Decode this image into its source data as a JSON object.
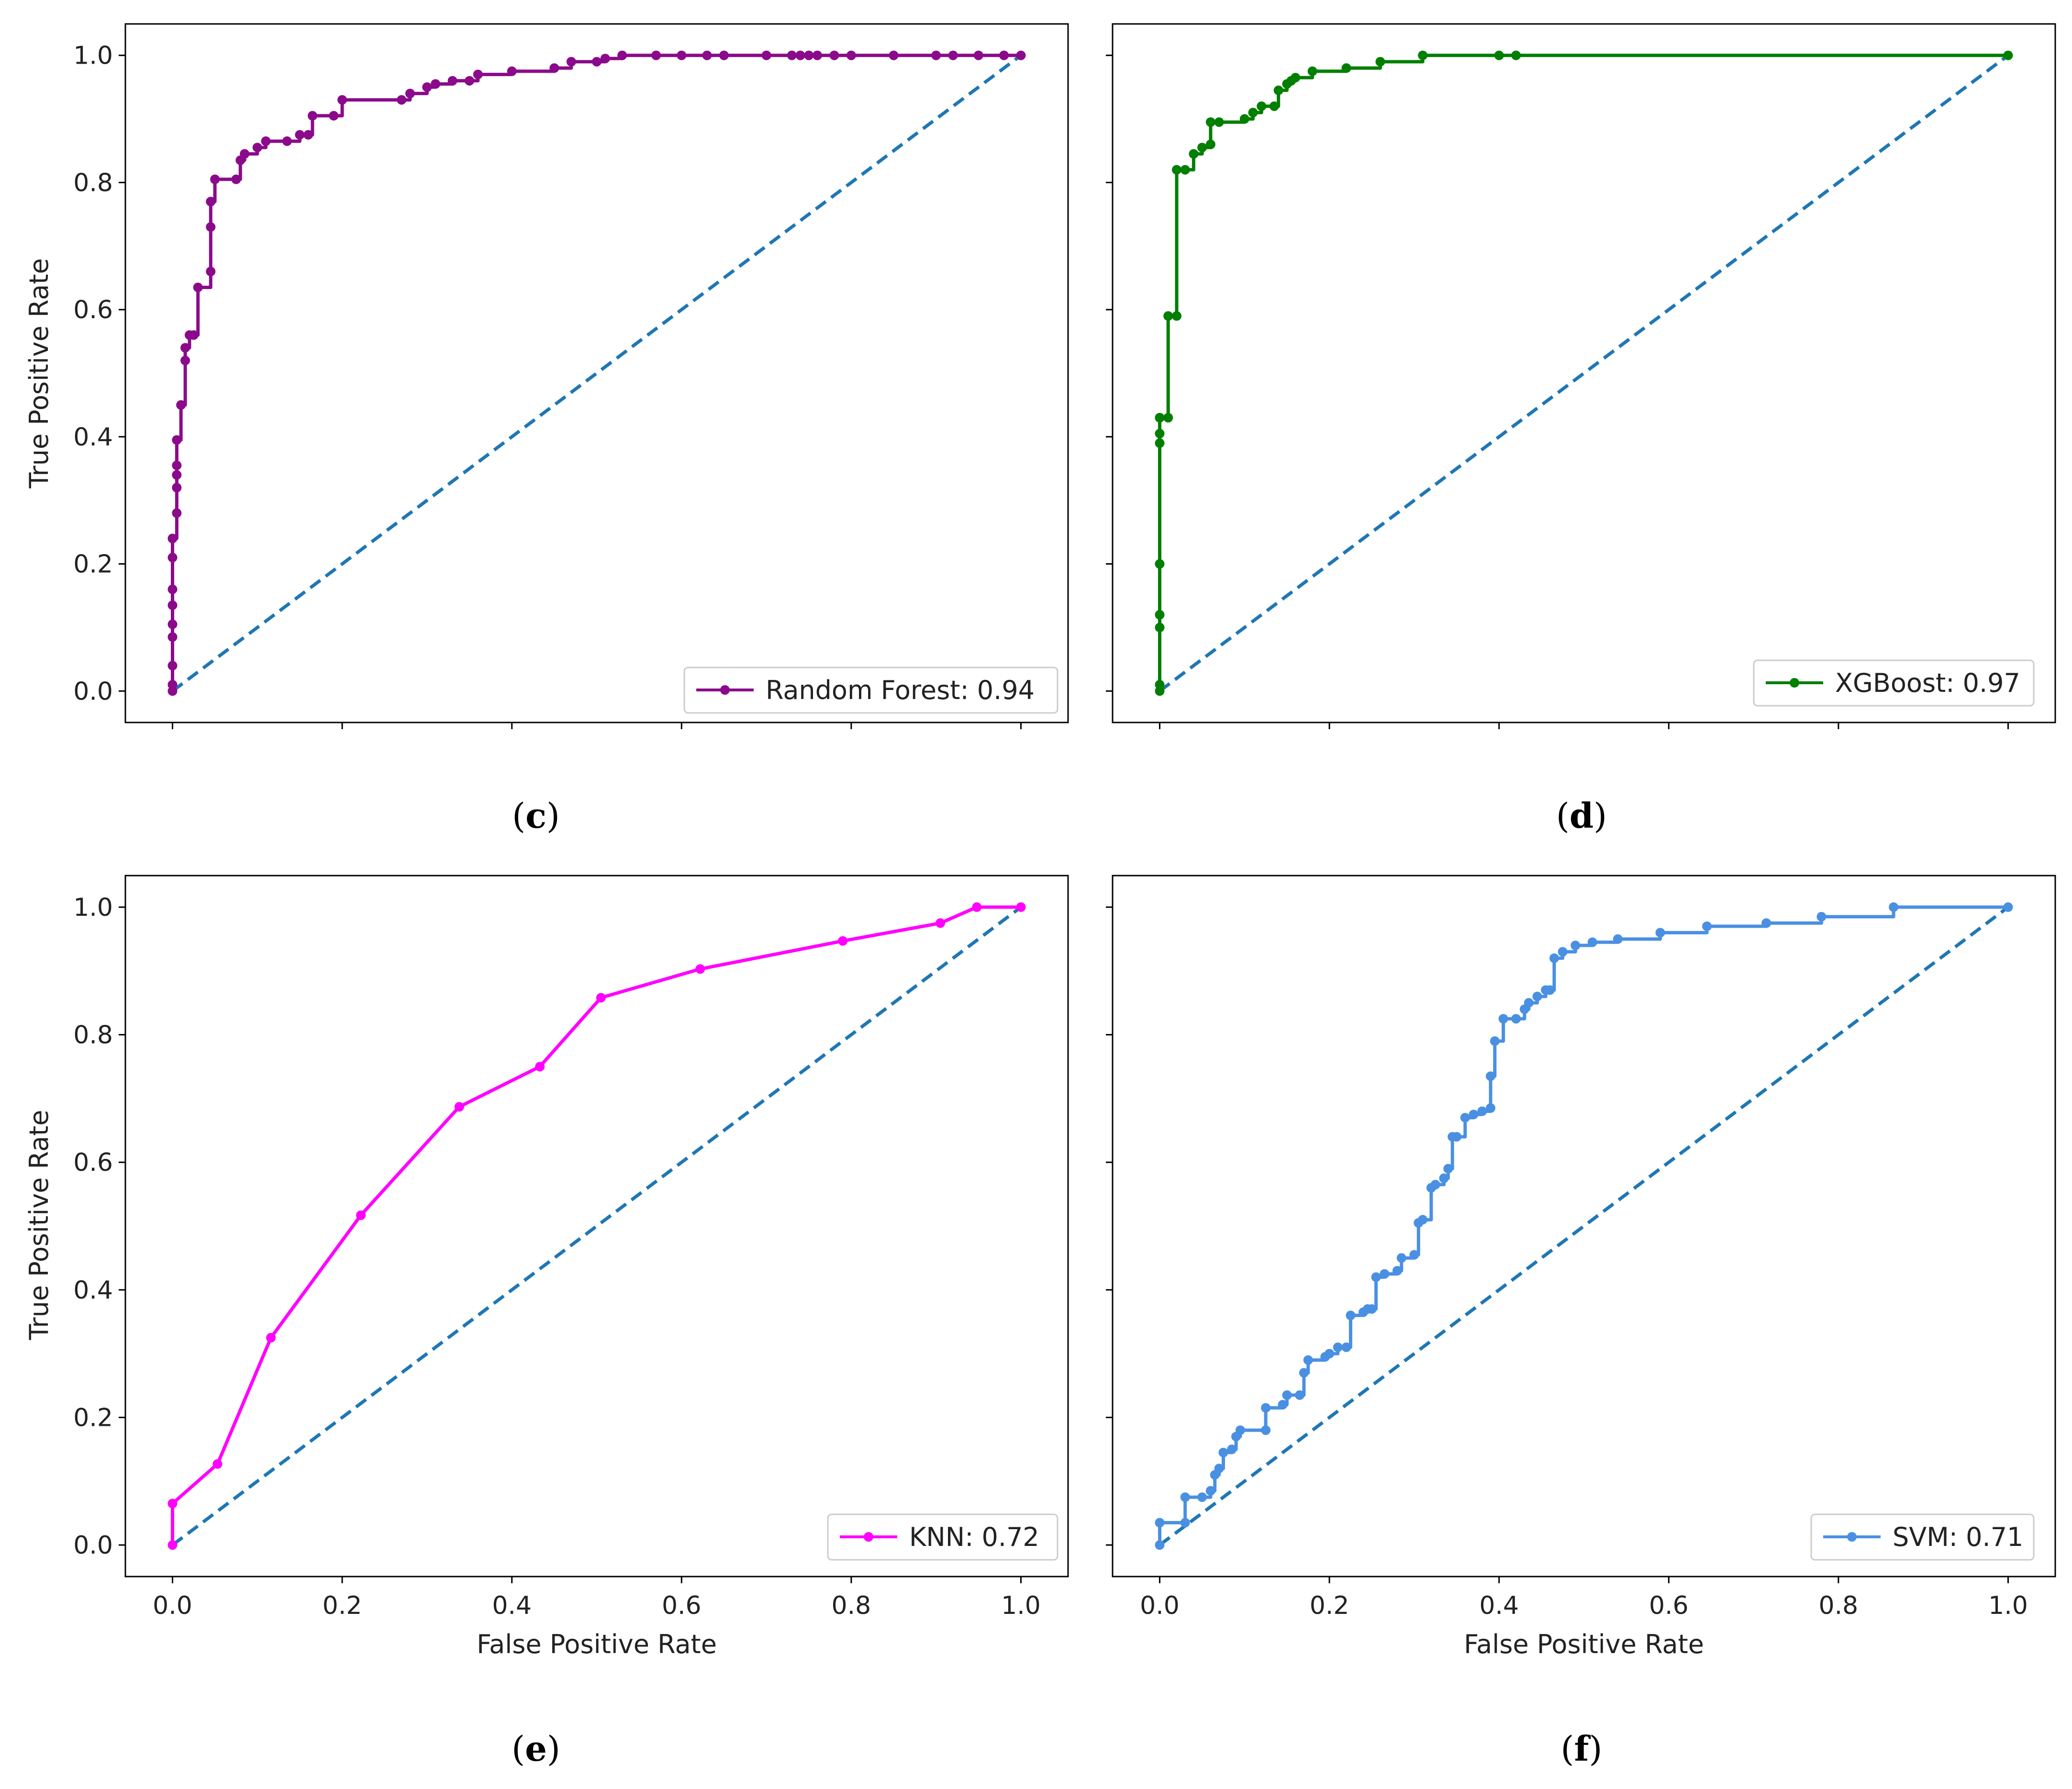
{
  "chart_data": [
    {
      "panel": "c",
      "type": "line",
      "caption_letter": "c",
      "caption_open": "(",
      "caption_close": ")",
      "xlabel": "",
      "ylabel": "True Positive Rate",
      "xlim": [
        0,
        1
      ],
      "ylim": [
        0,
        1
      ],
      "x_ticks": [
        "",
        "",
        "",
        "",
        "",
        ""
      ],
      "y_ticks": [
        "0.0",
        "0.2",
        "0.4",
        "0.6",
        "0.8",
        "1.0"
      ],
      "legend": "Random Forest: 0.94",
      "legend_position": "bottom-right",
      "color": "#8B0A8B",
      "baseline_color": "#1f77b4",
      "series": [
        {
          "name": "Random Forest: 0.94",
          "step": true,
          "x": [
            0,
            0,
            0,
            0,
            0,
            0,
            0,
            0,
            0,
            0,
            0.005,
            0.005,
            0.005,
            0.005,
            0.005,
            0.01,
            0.01,
            0.015,
            0.015,
            0.02,
            0.025,
            0.03,
            0.045,
            0.045,
            0.045,
            0.05,
            0.075,
            0.08,
            0.085,
            0.1,
            0.11,
            0.135,
            0.15,
            0.16,
            0.165,
            0.19,
            0.2,
            0.27,
            0.28,
            0.3,
            0.31,
            0.33,
            0.35,
            0.36,
            0.4,
            0.45,
            0.47,
            0.5,
            0.51,
            0.53,
            0.57,
            0.6,
            0.63,
            0.65,
            0.7,
            0.73,
            0.74,
            0.75,
            0.76,
            0.78,
            0.8,
            0.85,
            0.9,
            0.92,
            0.95,
            0.98,
            1.0
          ],
          "y": [
            0,
            0.01,
            0.04,
            0.085,
            0.105,
            0.135,
            0.16,
            0.21,
            0.24,
            0.24,
            0.28,
            0.32,
            0.34,
            0.355,
            0.395,
            0.45,
            0.45,
            0.52,
            0.54,
            0.56,
            0.56,
            0.635,
            0.66,
            0.73,
            0.77,
            0.805,
            0.805,
            0.835,
            0.845,
            0.855,
            0.865,
            0.865,
            0.875,
            0.875,
            0.905,
            0.905,
            0.93,
            0.93,
            0.94,
            0.95,
            0.955,
            0.96,
            0.96,
            0.97,
            0.975,
            0.98,
            0.99,
            0.99,
            0.995,
            1.0,
            1.0,
            1.0,
            1.0,
            1.0,
            1.0,
            1.0,
            1.0,
            1.0,
            1.0,
            1.0,
            1.0,
            1.0,
            1.0,
            1.0,
            1.0,
            1.0,
            1.0
          ]
        }
      ]
    },
    {
      "panel": "d",
      "type": "line",
      "caption_letter": "d",
      "caption_open": "(",
      "caption_close": ")",
      "xlabel": "",
      "ylabel": "",
      "xlim": [
        0,
        1
      ],
      "ylim": [
        0,
        1
      ],
      "x_ticks": [
        "",
        "",
        "",
        "",
        "",
        ""
      ],
      "y_ticks": [
        "",
        "",
        "",
        "",
        "",
        ""
      ],
      "legend": "XGBoost: 0.97",
      "legend_position": "bottom-right",
      "color": "#007F00",
      "baseline_color": "#1f77b4",
      "series": [
        {
          "name": "XGBoost: 0.97",
          "step": true,
          "x": [
            0,
            0,
            0,
            0,
            0,
            0,
            0,
            0,
            0,
            0.01,
            0.01,
            0.02,
            0.02,
            0.03,
            0.04,
            0.05,
            0.06,
            0.06,
            0.07,
            0.1,
            0.11,
            0.12,
            0.135,
            0.14,
            0.15,
            0.155,
            0.16,
            0.18,
            0.22,
            0.26,
            0.31,
            0.4,
            0.42,
            1.0
          ],
          "y": [
            0,
            0.01,
            0.1,
            0.12,
            0.2,
            0.39,
            0.405,
            0.43,
            0.43,
            0.43,
            0.59,
            0.59,
            0.82,
            0.82,
            0.845,
            0.855,
            0.86,
            0.895,
            0.895,
            0.9,
            0.91,
            0.92,
            0.92,
            0.945,
            0.955,
            0.96,
            0.965,
            0.975,
            0.98,
            0.99,
            1.0,
            1.0,
            1.0,
            1.0
          ]
        }
      ]
    },
    {
      "panel": "e",
      "type": "line",
      "caption_letter": "e",
      "caption_open": "(",
      "caption_close": ")",
      "xlabel": "False Positive Rate",
      "ylabel": "True Positive Rate",
      "xlim": [
        0,
        1
      ],
      "ylim": [
        0,
        1
      ],
      "x_ticks": [
        "0.0",
        "0.2",
        "0.4",
        "0.6",
        "0.8",
        "1.0"
      ],
      "y_ticks": [
        "0.0",
        "0.2",
        "0.4",
        "0.6",
        "0.8",
        "1.0"
      ],
      "legend": "KNN: 0.72",
      "legend_position": "bottom-right",
      "color": "#FF00FF",
      "baseline_color": "#1f77b4",
      "series": [
        {
          "name": "KNN: 0.72",
          "step": false,
          "x": [
            0.0,
            0.0,
            0.053,
            0.116,
            0.222,
            0.338,
            0.433,
            0.505,
            0.622,
            0.79,
            0.905,
            0.948,
            1.0
          ],
          "y": [
            0.0,
            0.065,
            0.127,
            0.325,
            0.517,
            0.687,
            0.75,
            0.858,
            0.903,
            0.947,
            0.975,
            1.0,
            1.0
          ]
        }
      ]
    },
    {
      "panel": "f",
      "type": "line",
      "caption_letter": "f",
      "caption_open": "(",
      "caption_close": ")",
      "xlabel": "False Positive Rate",
      "ylabel": "",
      "xlim": [
        0,
        1
      ],
      "ylim": [
        0,
        1
      ],
      "x_ticks": [
        "0.0",
        "0.2",
        "0.4",
        "0.6",
        "0.8",
        "1.0"
      ],
      "y_ticks": [
        "",
        "",
        "",
        "",
        "",
        ""
      ],
      "legend": "SVM: 0.71",
      "legend_position": "bottom-right",
      "color": "#4A90E2",
      "baseline_color": "#1f77b4",
      "series": [
        {
          "name": "SVM: 0.71",
          "step": true,
          "x": [
            0,
            0,
            0.03,
            0.03,
            0.05,
            0.06,
            0.065,
            0.07,
            0.075,
            0.085,
            0.09,
            0.095,
            0.125,
            0.125,
            0.145,
            0.15,
            0.165,
            0.17,
            0.175,
            0.195,
            0.2,
            0.21,
            0.22,
            0.225,
            0.24,
            0.245,
            0.25,
            0.255,
            0.265,
            0.28,
            0.285,
            0.3,
            0.305,
            0.31,
            0.32,
            0.325,
            0.335,
            0.34,
            0.345,
            0.35,
            0.36,
            0.37,
            0.38,
            0.39,
            0.39,
            0.395,
            0.405,
            0.42,
            0.43,
            0.435,
            0.445,
            0.455,
            0.46,
            0.465,
            0.475,
            0.49,
            0.51,
            0.54,
            0.59,
            0.645,
            0.715,
            0.78,
            0.865,
            1.0
          ],
          "y": [
            0,
            0.035,
            0.035,
            0.075,
            0.075,
            0.085,
            0.11,
            0.12,
            0.145,
            0.15,
            0.17,
            0.18,
            0.18,
            0.215,
            0.22,
            0.235,
            0.235,
            0.27,
            0.29,
            0.295,
            0.3,
            0.31,
            0.31,
            0.36,
            0.365,
            0.37,
            0.37,
            0.42,
            0.425,
            0.43,
            0.45,
            0.455,
            0.505,
            0.51,
            0.56,
            0.565,
            0.575,
            0.59,
            0.64,
            0.64,
            0.67,
            0.675,
            0.68,
            0.685,
            0.735,
            0.79,
            0.825,
            0.825,
            0.84,
            0.85,
            0.86,
            0.87,
            0.87,
            0.92,
            0.93,
            0.94,
            0.945,
            0.95,
            0.96,
            0.97,
            0.975,
            0.985,
            1.0,
            1.0
          ]
        }
      ]
    }
  ]
}
